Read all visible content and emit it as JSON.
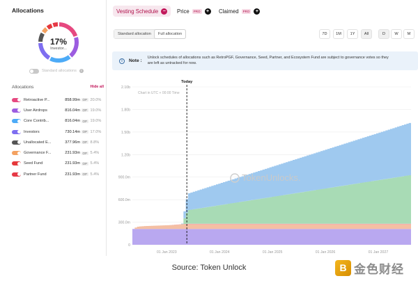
{
  "left": {
    "title": "Allocations",
    "donut_pct": "17%",
    "donut_sub": "Investor...",
    "std_label": "Standard allocations",
    "allocs_header": "Allocations",
    "hide_all": "Hide all",
    "items": [
      {
        "name": "Retroactive P...",
        "value": "858.99m",
        "unit": "OP",
        "pct": "20.0%",
        "color": "#e64980"
      },
      {
        "name": "User Airdrops",
        "value": "816.04m",
        "unit": "OP",
        "pct": "19.0%",
        "color": "#9c5de0"
      },
      {
        "name": "Core Contrib...",
        "value": "816.04m",
        "unit": "OP",
        "pct": "19.0%",
        "color": "#4dabf7"
      },
      {
        "name": "Investors",
        "value": "730.14m",
        "unit": "OP",
        "pct": "17.0%",
        "color": "#7e6ef0"
      },
      {
        "name": "Unallocated E...",
        "value": "377.96m",
        "unit": "OP",
        "pct": "8.8%",
        "color": "#555555"
      },
      {
        "name": "Governance F...",
        "value": "231.93m",
        "unit": "OP",
        "pct": "5.4%",
        "color": "#f4a261"
      },
      {
        "name": "Seed Fund",
        "value": "231.93m",
        "unit": "OP",
        "pct": "5.4%",
        "color": "#e5383b"
      },
      {
        "name": "Partner Fund",
        "value": "231.93m",
        "unit": "OP",
        "pct": "5.4%",
        "color": "#e63946"
      }
    ]
  },
  "tabs": {
    "vesting": "Vesting Schedule",
    "price": "Price",
    "claimed": "Claimed",
    "pro": "PRO",
    "x": "−",
    "plus": "+"
  },
  "modes": {
    "standard": "Standard allocation",
    "full": "Full allocation"
  },
  "ranges": [
    "7D",
    "1M",
    "1Y",
    "All"
  ],
  "intervals": [
    "D",
    "W",
    "M"
  ],
  "note": {
    "icon": "i",
    "label": "Note :",
    "text": "Unlock schedules of allocations such as RetroPGF, Governance, Seed, Partner, and Ecosystem Fund are subject to governance votes so they are left as untracked for now."
  },
  "chart_data": {
    "type": "area",
    "title": "",
    "subtitle": "Chart in UTC + 00:00 Time",
    "today_label": "Today",
    "watermark": "TokenUnlocks.",
    "y_ticks": [
      {
        "label": "0",
        "value": 0
      },
      {
        "label": "300.0m",
        "value": 300000000
      },
      {
        "label": "600.0m",
        "value": 600000000
      },
      {
        "label": "900.0m",
        "value": 900000000
      },
      {
        "label": "1.20b",
        "value": 1200000000
      },
      {
        "label": "1.50b",
        "value": 1500000000
      },
      {
        "label": "1.80b",
        "value": 1800000000
      },
      {
        "label": "2.10b",
        "value": 2100000000
      }
    ],
    "ylim": [
      0,
      2100000000
    ],
    "x_ticks": [
      {
        "label": "01 Jan 2023",
        "t": 2023.0
      },
      {
        "label": "01 Jan 2024",
        "t": 2024.0
      },
      {
        "label": "01 Jan 2025",
        "t": 2025.0
      },
      {
        "label": "01 Jan 2026",
        "t": 2026.0
      },
      {
        "label": "01 Jan 2027",
        "t": 2027.0
      }
    ],
    "xlim": [
      2022.35,
      2027.62
    ],
    "today": 2023.38,
    "series": [
      {
        "name": "Investors",
        "color": "#b9a8f0",
        "points": [
          [
            2022.35,
            210000000
          ],
          [
            2022.42,
            210000000
          ],
          [
            2022.6,
            210000000
          ],
          [
            2023.0,
            210000000
          ],
          [
            2023.38,
            210000000
          ],
          [
            2027.62,
            210000000
          ]
        ]
      },
      {
        "name": "Governance Fund",
        "color": "#f4bfa3",
        "points": [
          [
            2022.35,
            0
          ],
          [
            2022.42,
            30000000
          ],
          [
            2022.6,
            40000000
          ],
          [
            2023.0,
            50000000
          ],
          [
            2023.38,
            60000000
          ],
          [
            2027.62,
            60000000
          ]
        ]
      },
      {
        "name": "Seed Fund",
        "color": "#f3a6a6",
        "points": [
          [
            2022.35,
            0
          ],
          [
            2022.42,
            0
          ],
          [
            2022.6,
            0
          ],
          [
            2023.0,
            0
          ],
          [
            2023.38,
            10000000
          ],
          [
            2027.62,
            10000000
          ]
        ]
      },
      {
        "name": "Core Contributors",
        "color": "#a8dbb5",
        "points": [
          [
            2022.35,
            0
          ],
          [
            2022.42,
            0
          ],
          [
            2022.6,
            0
          ],
          [
            2023.0,
            0
          ],
          [
            2023.27,
            0
          ],
          [
            2023.38,
            180000000
          ],
          [
            2027.62,
            650000000
          ]
        ]
      },
      {
        "name": "Retroactive PGF",
        "color": "#9fc9ef",
        "points": [
          [
            2022.35,
            0
          ],
          [
            2022.42,
            0
          ],
          [
            2022.6,
            0
          ],
          [
            2023.0,
            0
          ],
          [
            2023.27,
            0
          ],
          [
            2023.38,
            220000000
          ],
          [
            2027.62,
            700000000
          ]
        ]
      }
    ]
  },
  "footer": {
    "source": "Source: Token Unlock",
    "logo_glyph": "B",
    "logo_text": "金色财经"
  }
}
